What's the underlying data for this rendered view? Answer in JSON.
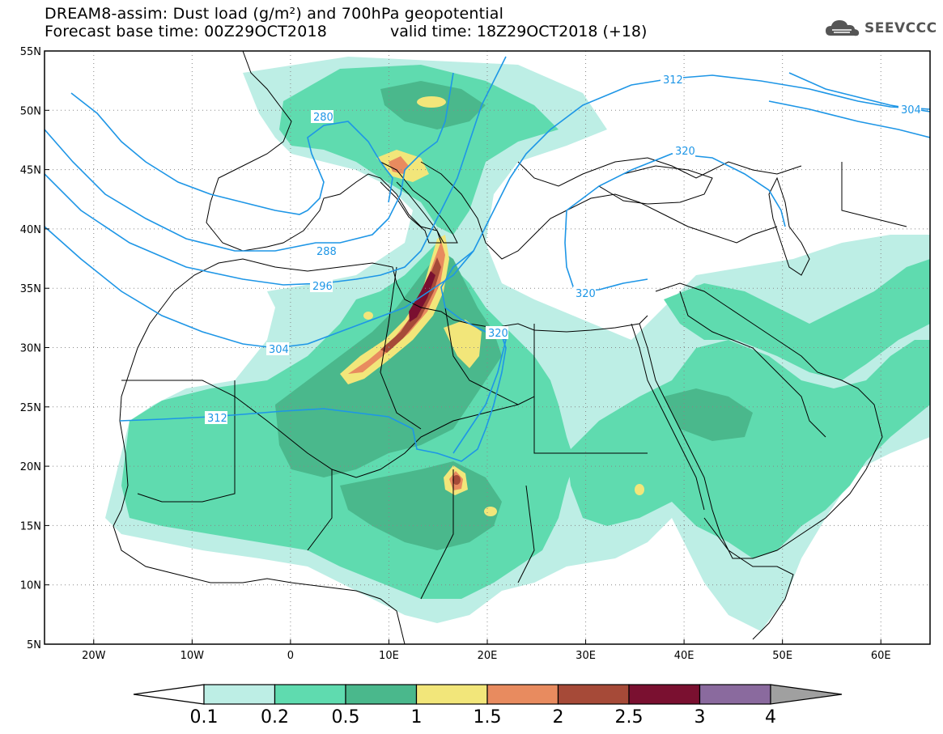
{
  "header": {
    "title_line1": "DREAM8-assim: Dust load (g/m²) and 700hPa geopotential",
    "title_line2": "Forecast base time: 00Z29OCT2018",
    "valid_time": "valid time: 18Z29OCT2018 (+18)"
  },
  "logo": {
    "text": "SEEVCCC",
    "icon": "cloud-icon"
  },
  "map": {
    "lat_labels": [
      "55N",
      "50N",
      "45N",
      "40N",
      "35N",
      "30N",
      "25N",
      "20N",
      "15N",
      "10N",
      "5N"
    ],
    "lon_labels": [
      "20W",
      "10W",
      "0",
      "10E",
      "20E",
      "30E",
      "40E",
      "50E",
      "60E"
    ],
    "contour_labels": [
      "280",
      "288",
      "296",
      "304",
      "312",
      "320",
      "320",
      "320",
      "312",
      "304"
    ]
  },
  "colorbar": {
    "labels": [
      "0.1",
      "0.2",
      "0.5",
      "1",
      "1.5",
      "2",
      "2.5",
      "3",
      "4"
    ],
    "colors": [
      "#ffffff",
      "#bdeee5",
      "#5fdbaf",
      "#4ab88c",
      "#f2e67a",
      "#e88b5f",
      "#a64a38",
      "#7a1030",
      "#8a6a9e",
      "#a0a0a0"
    ]
  },
  "colors": {
    "dust_low": "#bdeee5",
    "dust_mid": "#5fdbaf",
    "dust_high": "#4ab88c",
    "dust_1": "#f2e67a",
    "dust_15": "#e88b5f",
    "dust_2": "#a64a38",
    "dust_25": "#7a1030",
    "contour": "#1e96e6"
  }
}
